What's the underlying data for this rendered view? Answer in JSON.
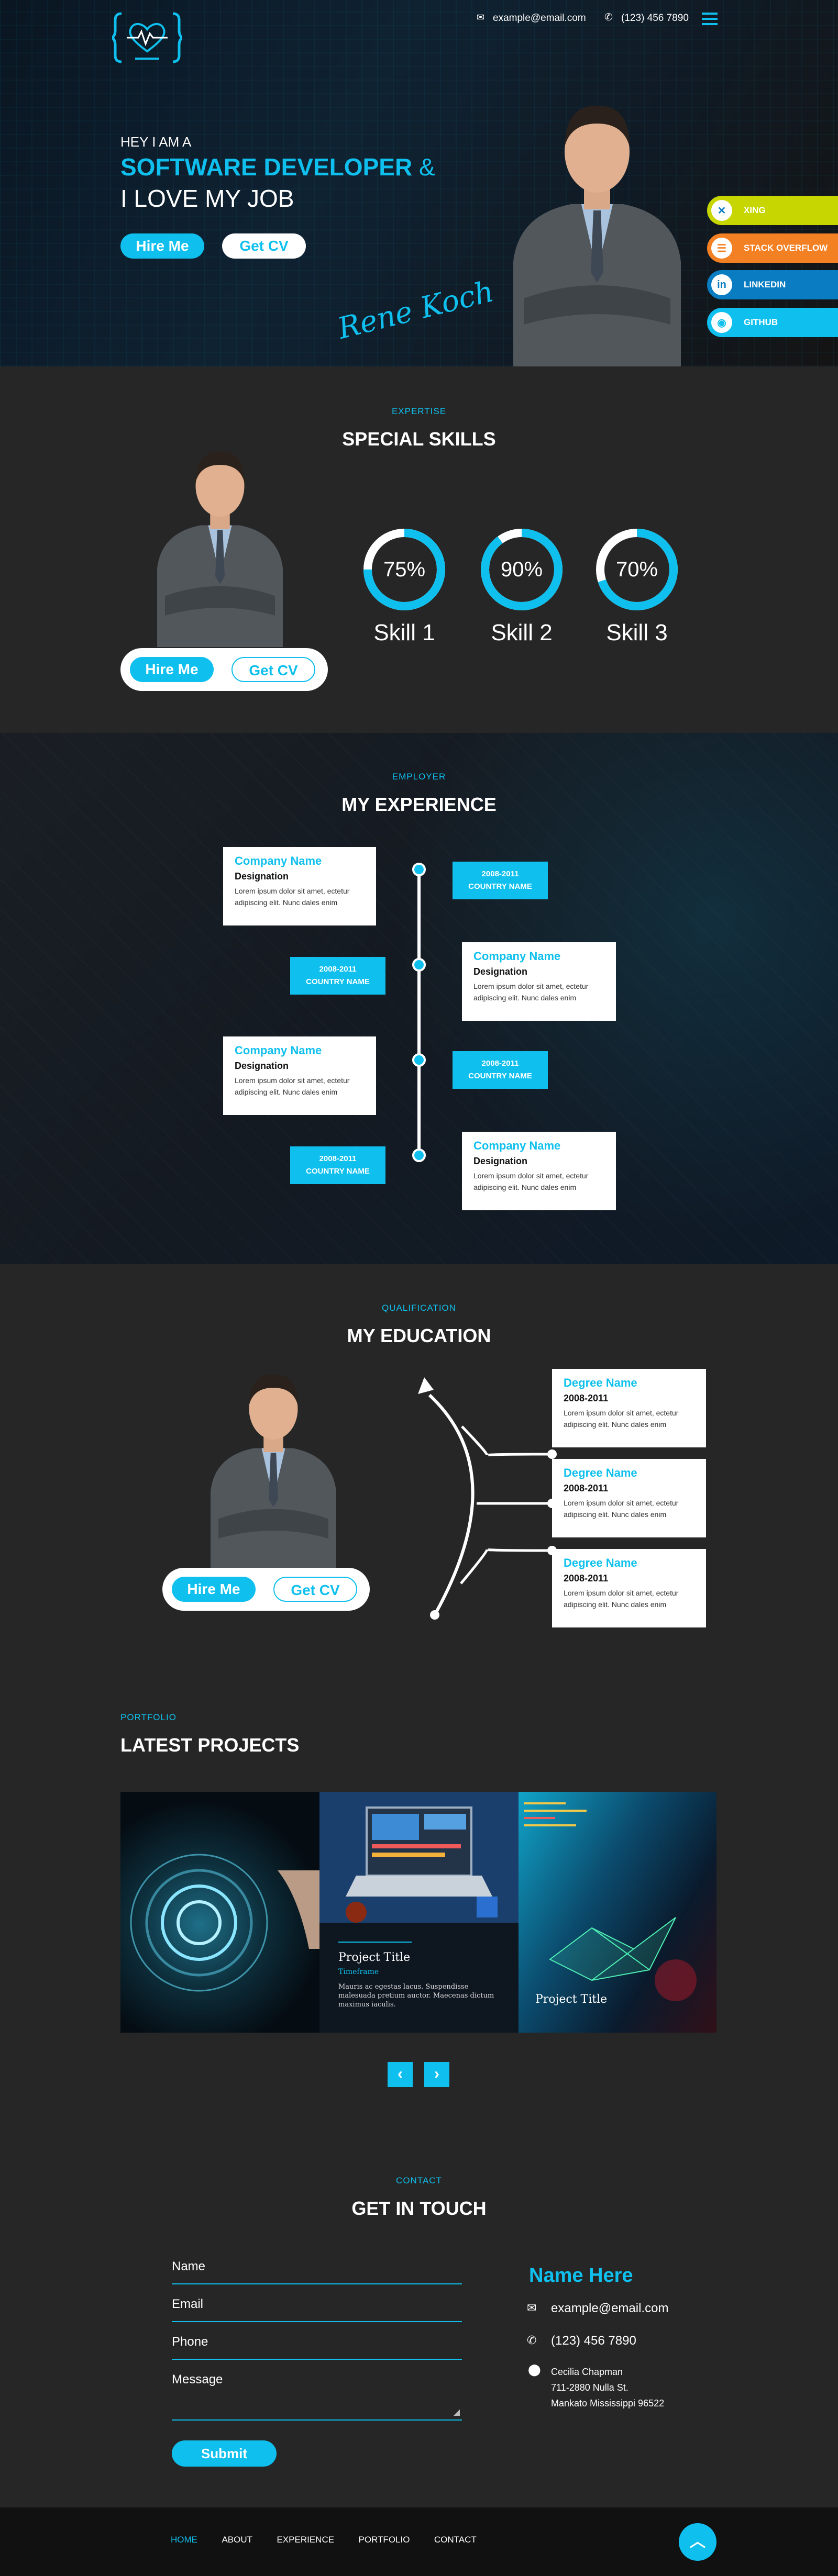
{
  "colors": {
    "accent": "#0fc0ee",
    "dark": "#262626",
    "xing": "#c7d600",
    "stackoverflow": "#f48024",
    "linkedin": "#0a7cc2",
    "github": "#0fc0ee"
  },
  "header": {
    "email": "example@email.com",
    "phone": "(123) 456 7890",
    "email_icon": "envelope-icon",
    "phone_icon": "phone-icon",
    "menu_icon": "hamburger-icon"
  },
  "hero": {
    "greeting": "HEY I AM A",
    "title_accent": "SOFTWARE DEVELOPER",
    "title_amp": "&",
    "title_line2": "I LOVE MY JOB",
    "hire_label": "Hire Me",
    "cv_label": "Get CV",
    "signature": "Rene Koch"
  },
  "social": [
    {
      "label": "XING",
      "icon": "xing-icon",
      "glyph": "✕"
    },
    {
      "label": "STACK OVERFLOW",
      "icon": "stack-overflow-icon",
      "glyph": "☰"
    },
    {
      "label": "LINKEDIN",
      "icon": "linkedin-icon",
      "glyph": "in"
    },
    {
      "label": "GITHUB",
      "icon": "github-icon",
      "glyph": "◉"
    }
  ],
  "skills": {
    "kicker": "EXPERTISE",
    "title": "SPECIAL SKILLS",
    "hire_label": "Hire Me",
    "cv_label": "Get CV",
    "items": [
      {
        "name": "Skill 1",
        "value": 75,
        "text": "75%"
      },
      {
        "name": "Skill 2",
        "value": 90,
        "text": "90%"
      },
      {
        "name": "Skill 3",
        "value": 70,
        "text": "70%"
      }
    ]
  },
  "experience": {
    "kicker": "EMPLOYER",
    "title": "MY EXPERIENCE",
    "items": [
      {
        "company": "Company Name",
        "designation": "Designation",
        "desc": "Lorem ipsum dolor sit amet, ectetur adipiscing elit. Nunc dales enim",
        "years": "2008-2011",
        "country": "COUNTRY NAME"
      },
      {
        "company": "Company Name",
        "designation": "Designation",
        "desc": "Lorem ipsum dolor sit amet, ectetur adipiscing elit. Nunc dales enim",
        "years": "2008-2011",
        "country": "COUNTRY NAME"
      },
      {
        "company": "Company Name",
        "designation": "Designation",
        "desc": "Lorem ipsum dolor sit amet, ectetur adipiscing elit. Nunc dales enim",
        "years": "2008-2011",
        "country": "COUNTRY NAME"
      },
      {
        "company": "Company Name",
        "designation": "Designation",
        "desc": "Lorem ipsum dolor sit amet, ectetur adipiscing elit. Nunc dales enim",
        "years": "2008-2011",
        "country": "COUNTRY NAME"
      }
    ]
  },
  "education": {
    "kicker": "QUALIFICATION",
    "title": "MY EDUCATION",
    "hire_label": "Hire Me",
    "cv_label": "Get CV",
    "items": [
      {
        "degree": "Degree Name",
        "years": "2008-2011",
        "desc": "Lorem ipsum dolor sit amet, ectetur adipiscing elit. Nunc dales enim"
      },
      {
        "degree": "Degree Name",
        "years": "2008-2011",
        "desc": "Lorem ipsum dolor sit amet, ectetur adipiscing elit. Nunc dales enim"
      },
      {
        "degree": "Degree Name",
        "years": "2008-2011",
        "desc": "Lorem ipsum dolor sit amet, ectetur adipiscing elit. Nunc dales enim"
      }
    ]
  },
  "portfolio": {
    "kicker": "PORTFOLIO",
    "title": "LATEST PROJECTS",
    "featured": {
      "title": "Project Title",
      "timeframe": "Timeframe",
      "desc": "Mauris ac egestas lacus. Suspendisse malesuada pretium auctor. Maecenas dictum maximus iaculis."
    },
    "third_title": "Project Title",
    "prev_icon": "chevron-left-icon",
    "next_icon": "chevron-right-icon"
  },
  "contact": {
    "kicker": "CONTACT",
    "title": "GET IN TOUCH",
    "fields": {
      "name": "Name",
      "email": "Email",
      "phone": "Phone",
      "message": "Message"
    },
    "submit": "Submit",
    "card_name": "Name Here",
    "email": "example@email.com",
    "phone": "(123) 456 7890",
    "address_line1": "Cecilia Chapman",
    "address_line2": "711-2880 Nulla St.",
    "address_line3": "Mankato Mississippi 96522"
  },
  "footer": {
    "nav": [
      "HOME",
      "ABOUT",
      "EXPERIENCE",
      "PORTFOLIO",
      "CONTACT"
    ],
    "active": "HOME",
    "top_icon": "chevron-up-icon"
  }
}
